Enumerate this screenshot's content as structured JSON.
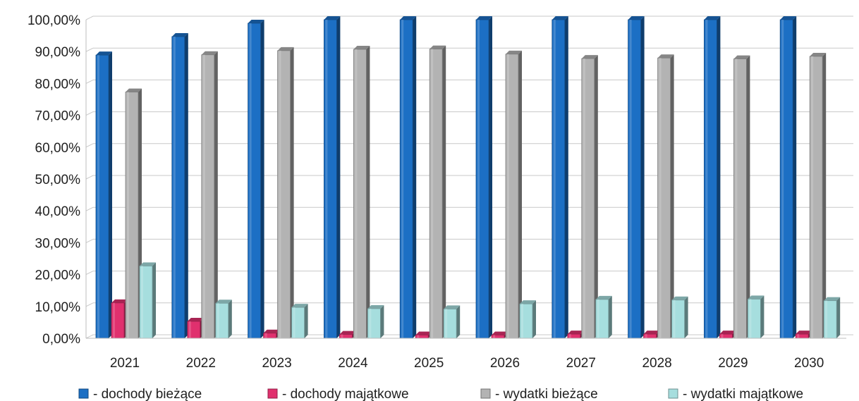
{
  "chart_data": {
    "type": "bar",
    "categories": [
      "2021",
      "2022",
      "2023",
      "2024",
      "2025",
      "2026",
      "2027",
      "2028",
      "2029",
      "2030"
    ],
    "series": [
      {
        "name": "- dochody bieżące",
        "color": "#1c6fc4",
        "values": [
          88.9,
          94.7,
          98.9,
          100.0,
          100.0,
          100.0,
          100.0,
          100.0,
          100.0,
          100.0
        ]
      },
      {
        "name": "- dochody majątkowe",
        "color": "#e0306e",
        "values": [
          11.1,
          5.3,
          1.6,
          1.2,
          1.0,
          1.0,
          1.3,
          1.3,
          1.3,
          1.3
        ]
      },
      {
        "name": "- wydatki bieżące",
        "color": "#b3b3b3",
        "values": [
          77.3,
          89.0,
          90.3,
          90.7,
          90.8,
          89.2,
          87.8,
          88.0,
          87.7,
          88.5
        ]
      },
      {
        "name": "- wydatki majątkowe",
        "color": "#a6dede",
        "values": [
          22.7,
          11.0,
          9.7,
          9.3,
          9.2,
          10.8,
          12.2,
          12.0,
          12.3,
          11.8
        ]
      }
    ],
    "yticks": [
      "0,00%",
      "10,00%",
      "20,00%",
      "30,00%",
      "40,00%",
      "50,00%",
      "60,00%",
      "70,00%",
      "80,00%",
      "90,00%",
      "100,00%"
    ],
    "ylim": [
      0,
      100
    ],
    "grid": true,
    "legend": "bottom",
    "title": "",
    "xlabel": "",
    "ylabel": ""
  }
}
